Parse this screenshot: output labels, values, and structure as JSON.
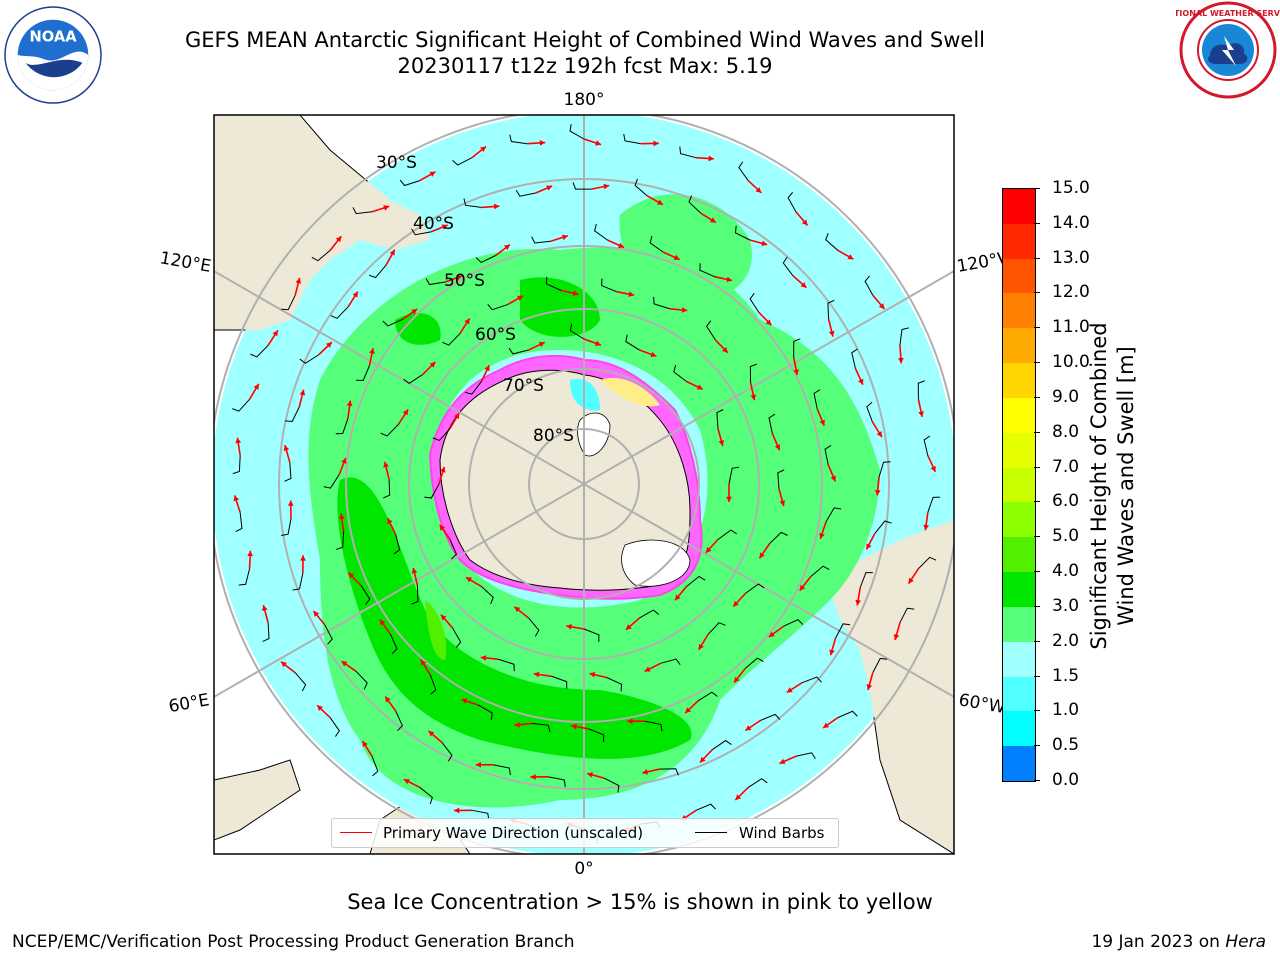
{
  "title": {
    "line1": "GEFS MEAN Antarctic Significant Height of Combined Wind Waves and Swell",
    "line2": "20230117 t12z 192h fcst   Max: 5.19"
  },
  "logos": {
    "left": {
      "name": "noaa-logo",
      "text": "NOAA"
    },
    "right": {
      "name": "nws-logo",
      "text": "NATIONAL WEATHER SERVICE"
    }
  },
  "map": {
    "projection": "south-polar-stereographic",
    "longitude_labels": {
      "top": "180°",
      "bottom": "0°",
      "upper_left": "120°E",
      "upper_right": "120°W",
      "lower_left": "60°E",
      "lower_right": "60°W"
    },
    "latitude_labels": [
      "30°S",
      "40°S",
      "50°S",
      "60°S",
      "70°S",
      "80°S"
    ],
    "colors": {
      "land": "#ede9d6",
      "ocean_light": "#a0ffff",
      "grid": "#b0b0b0",
      "wave_arrow": "#ff0000",
      "wind_barb": "#000000"
    }
  },
  "legend": {
    "wave_direction": "Primary Wave Direction (unscaled)",
    "wind_barbs": "Wind Barbs"
  },
  "colorbar": {
    "label_line1": "Significant Height of Combined",
    "label_line2": "Wind Waves and Swell [m]",
    "ticks": [
      "15.0",
      "14.0",
      "13.0",
      "12.0",
      "11.0",
      "10.0",
      "9.0",
      "8.0",
      "7.0",
      "6.0",
      "5.0",
      "4.0",
      "3.0",
      "2.0",
      "1.5",
      "1.0",
      "0.5",
      "0.0"
    ],
    "colors": [
      "#ff0000",
      "#ff2a00",
      "#ff5500",
      "#ff8000",
      "#ffaa00",
      "#ffd400",
      "#ffff00",
      "#e6ff00",
      "#c8ff00",
      "#8cff00",
      "#50f000",
      "#00e600",
      "#55ff7a",
      "#a0ffff",
      "#50ffff",
      "#00ffff",
      "#0080ff",
      "#0000ff"
    ]
  },
  "note": "Sea Ice Concentration > 15% is shown in pink to yellow",
  "footer": {
    "left": "NCEP/EMC/Verification Post Processing Product Generation Branch",
    "right_date": "19 Jan 2023 on",
    "right_machine": "Hera"
  }
}
